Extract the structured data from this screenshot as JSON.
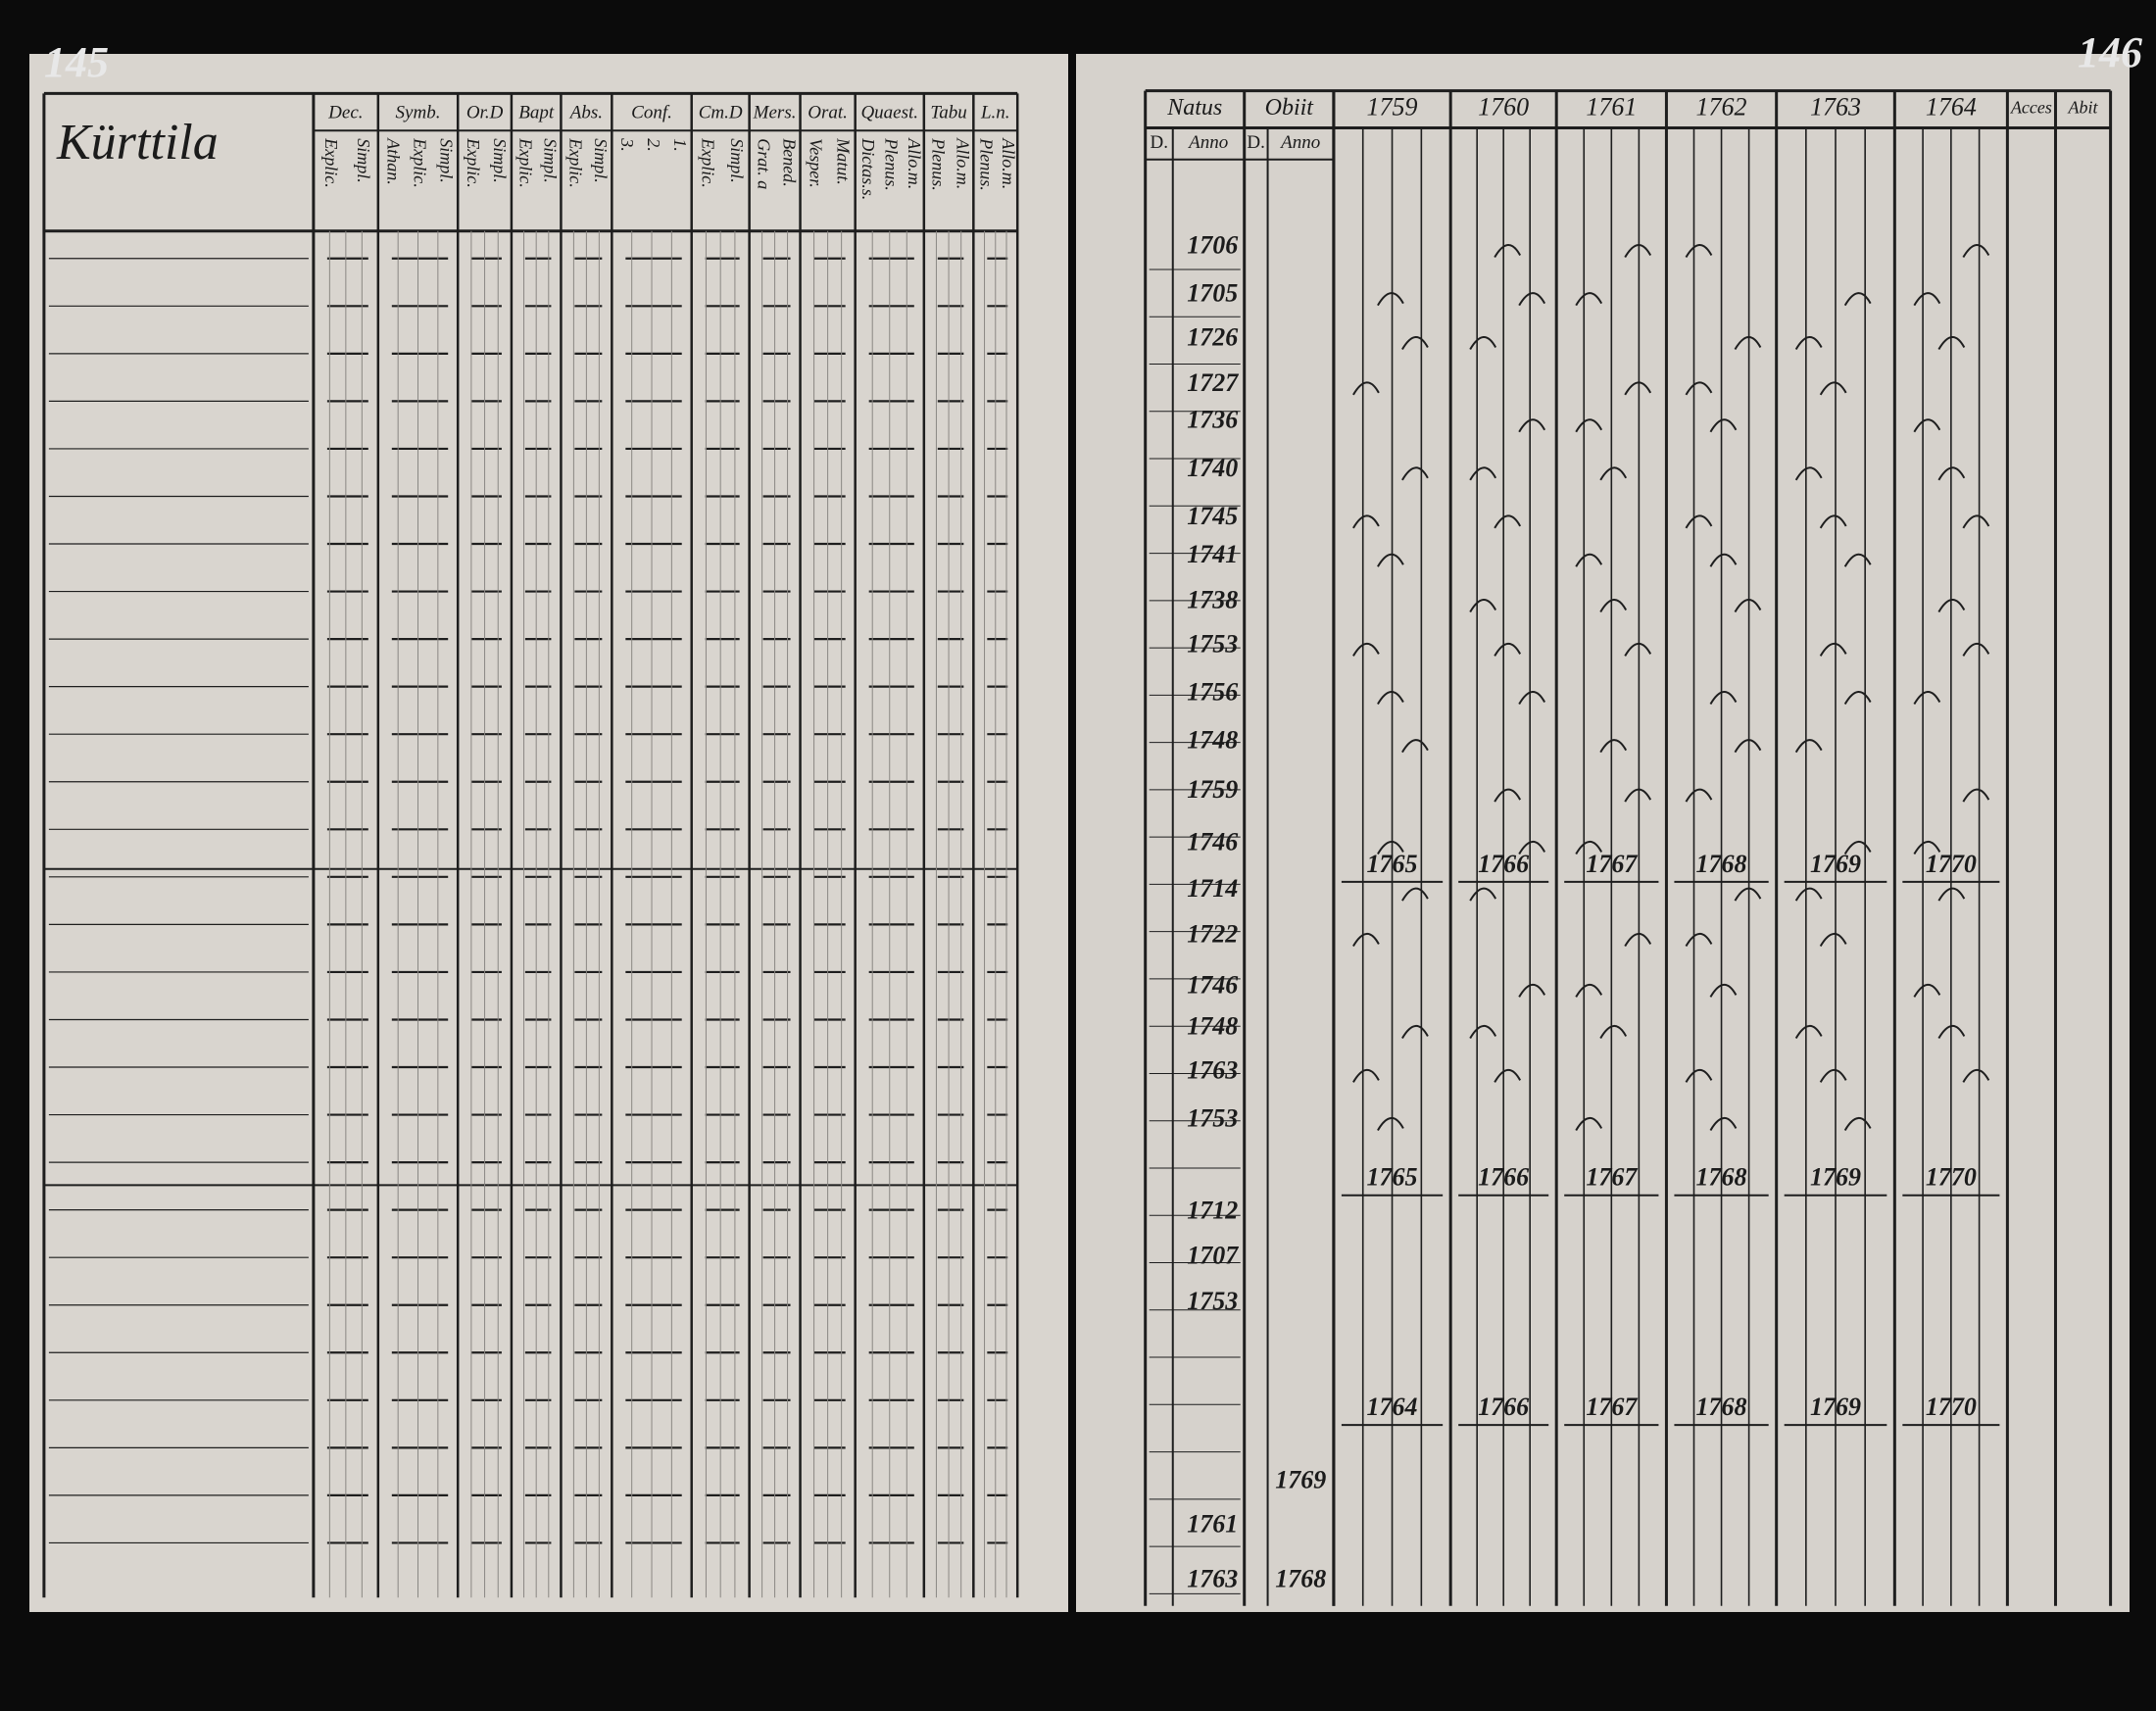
{
  "left_page": {
    "page_number": "145",
    "village": "Kürttila",
    "columns": [
      {
        "head": "Dec.",
        "sub": [
          "Explic.",
          "Simpl."
        ]
      },
      {
        "head": "Symb.",
        "sub": [
          "Athan.",
          "Explic.",
          "Simpl."
        ]
      },
      {
        "head": "Or.D",
        "sub": [
          "Explic.",
          "Simpl."
        ]
      },
      {
        "head": "Bapt",
        "sub": [
          "Explic.",
          "Simpl."
        ]
      },
      {
        "head": "Abs.",
        "sub": [
          "Explic.",
          "Simpl."
        ]
      },
      {
        "head": "Conf.",
        "sub": [
          "3.",
          "2.",
          "1."
        ]
      },
      {
        "head": "Cm.D",
        "sub": [
          "Explic.",
          "Simpl."
        ]
      },
      {
        "head": "Mers.",
        "sub": [
          "Grat. a",
          "Bened."
        ]
      },
      {
        "head": "Orat.",
        "sub": [
          "Vesper.",
          "Matut."
        ]
      },
      {
        "head": "Quaest.",
        "sub": [
          "Dictas.s.",
          "Plenus.",
          "Allo.m."
        ]
      },
      {
        "head": "Tabu",
        "sub": [
          "Plenus.",
          "Allo.m."
        ]
      },
      {
        "head": "L.n.",
        "sub": [
          "Plenus.",
          "Allo.m."
        ]
      }
    ]
  },
  "right_page": {
    "page_number": "146",
    "natus": "Natus",
    "obiit": "Obiit",
    "day": "D.",
    "anno": "Anno",
    "years": [
      "1759",
      "1760",
      "1761",
      "1762",
      "1763",
      "1764"
    ],
    "acces": "Acces",
    "abit": "Abit",
    "rows": [
      {
        "born": "1706"
      },
      {
        "born": "1705"
      },
      {
        "born": "1726"
      },
      {
        "born": "1727"
      },
      {
        "born": "1736"
      },
      {
        "born": "1740"
      },
      {
        "born": "1745"
      },
      {
        "born": "1741"
      },
      {
        "born": "1738"
      },
      {
        "born": "1753"
      },
      {
        "born": "1756"
      },
      {
        "born": "1748"
      },
      {
        "born": "1759"
      },
      {
        "born": "1746"
      },
      {
        "born": "1714"
      },
      {
        "born": "1722"
      },
      {
        "born": "1746"
      },
      {
        "born": "1748"
      },
      {
        "born": "1763"
      },
      {
        "born": "1753"
      },
      {
        "born": "1712"
      },
      {
        "born": "1707"
      },
      {
        "born": "1753"
      },
      {
        "obiit": "1769"
      },
      {
        "born": "1761"
      },
      {
        "born": "1763",
        "obiit": "1768"
      }
    ],
    "year_groups": [
      [
        "1765",
        "1766",
        "1767",
        "1768",
        "1769",
        "1770"
      ],
      [
        "1765",
        "1766",
        "1767",
        "1768",
        "1769",
        "1770"
      ],
      [
        "1764",
        "1766",
        "1767",
        "1768",
        "1769",
        "1770"
      ]
    ]
  }
}
